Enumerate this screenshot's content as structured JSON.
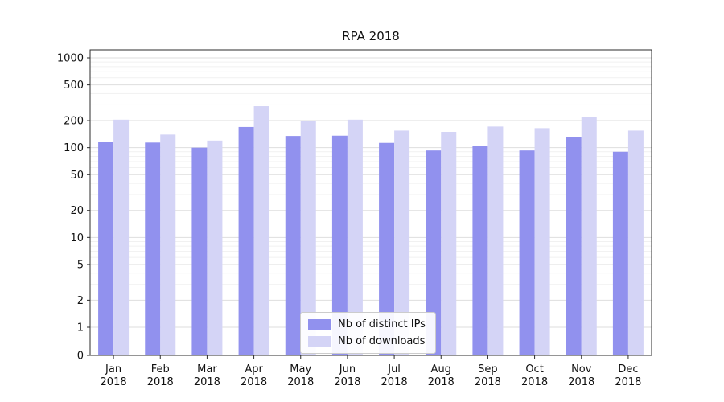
{
  "chart_data": {
    "type": "bar",
    "title": "RPA 2018",
    "year": "2018",
    "categories": [
      "Jan",
      "Feb",
      "Mar",
      "Apr",
      "May",
      "Jun",
      "Jul",
      "Aug",
      "Sep",
      "Oct",
      "Nov",
      "Dec"
    ],
    "series": [
      {
        "name": "Nb of distinct IPs",
        "color": "#9191ee",
        "values": [
          115,
          114,
          100,
          170,
          135,
          136,
          113,
          93,
          105,
          93,
          130,
          90
        ]
      },
      {
        "name": "Nb of downloads",
        "color": "#d4d4f6",
        "values": [
          205,
          140,
          120,
          290,
          198,
          205,
          155,
          150,
          172,
          165,
          220,
          155
        ]
      }
    ],
    "y_ticks": [
      0,
      1,
      2,
      5,
      10,
      20,
      50,
      100,
      200,
      500,
      1000
    ],
    "y_scale": "symlog",
    "ylim": [
      0,
      1200
    ],
    "grid": true,
    "legend_position": "bottom-center"
  }
}
